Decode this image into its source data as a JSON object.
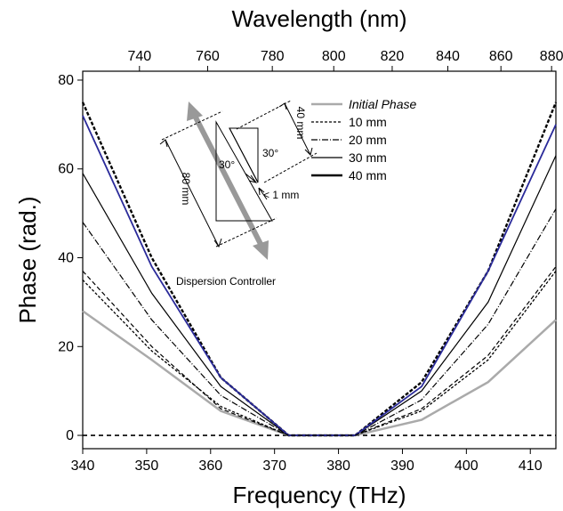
{
  "chart_data": {
    "type": "line",
    "xlabel": "Frequency   (THz)",
    "x2label": "Wavelength   (nm)",
    "ylabel": "Phase   (rad.)",
    "xlim": [
      340,
      414
    ],
    "ylim": [
      -3,
      82
    ],
    "xticks": [
      "340",
      "350",
      "360",
      "370",
      "380",
      "390",
      "400",
      "410"
    ],
    "x2ticks": [
      "740",
      "760",
      "780",
      "800",
      "820",
      "840",
      "860",
      "880"
    ],
    "yticks": [
      "0",
      "20",
      "40",
      "60",
      "80"
    ],
    "grid": false,
    "legend": {
      "position": "top-right",
      "entries": [
        "Initial Phase",
        "10 mm",
        "20 mm",
        "30 mm",
        "40 mm"
      ]
    },
    "x": [
      340,
      350.8,
      361.6,
      372.2,
      382.6,
      393.0,
      403.4,
      414
    ],
    "series": [
      {
        "name": "Initial Phase",
        "color": "#aaaaaa",
        "values": [
          28,
          17,
          5.5,
          0,
          0,
          3.5,
          12,
          26
        ]
      },
      {
        "name": "10 mm",
        "color": "#000000",
        "values": [
          35,
          19,
          6.5,
          0,
          0,
          5.5,
          17,
          37
        ]
      },
      {
        "name": "20 mm",
        "color": "#000000",
        "values": [
          48,
          26,
          9,
          0,
          0,
          8,
          25,
          51
        ]
      },
      {
        "name": "30 mm",
        "color": "#000000",
        "values": [
          59,
          32,
          11,
          0,
          0,
          10,
          30,
          63
        ]
      },
      {
        "name": "40 mm",
        "color": "#000000",
        "values": [
          75,
          40,
          13,
          0,
          0,
          12,
          37,
          75
        ]
      },
      {
        "name": "",
        "color": "#2a2a9a",
        "values": [
          72,
          38,
          13,
          0,
          0,
          11,
          37,
          70
        ]
      },
      {
        "name": "",
        "color": "#000000",
        "values": [
          37,
          20,
          6,
          0,
          0,
          6,
          18,
          38
        ]
      }
    ],
    "zero_line": {
      "value": 0,
      "style": "dashed"
    },
    "annotations": {
      "caption": "Dispersion Controller",
      "label_40mm": "40 mm",
      "label_80mm": "80 mm",
      "label_1mm": "< 1 mm",
      "angle_a": "30°",
      "angle_b": "30°"
    }
  }
}
